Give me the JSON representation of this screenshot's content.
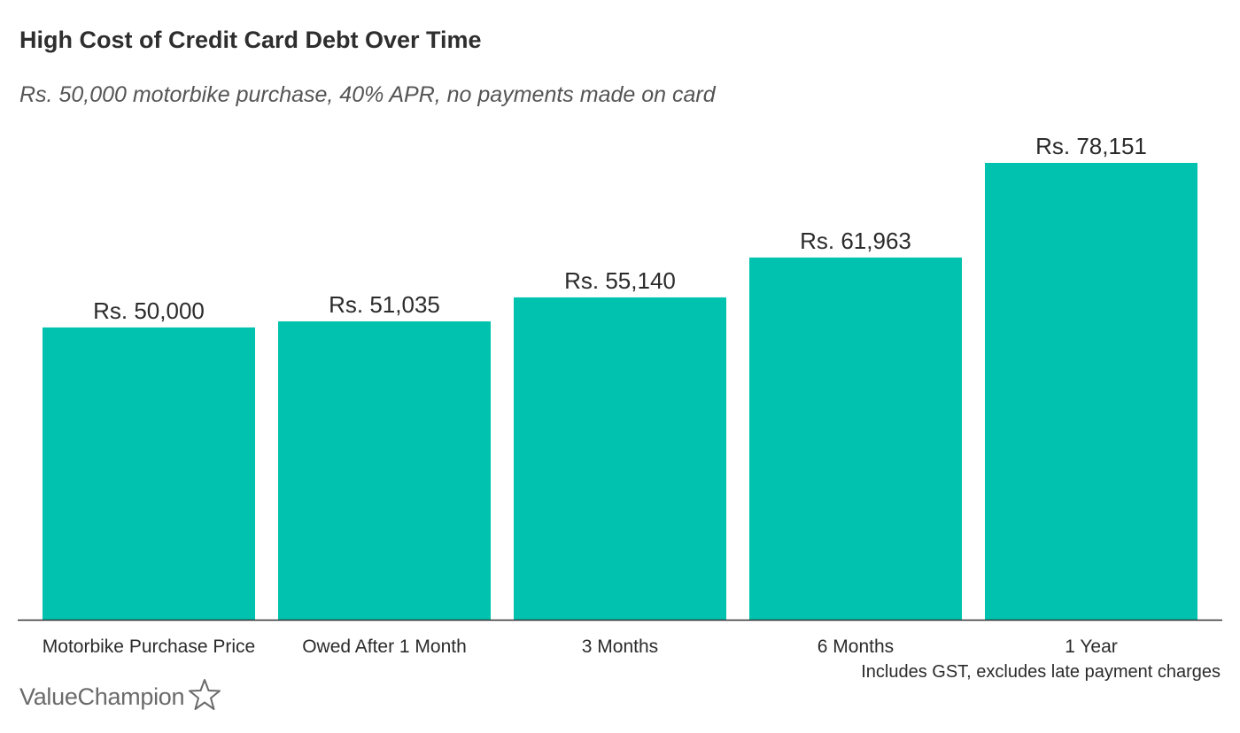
{
  "title": "High Cost of Credit Card Debt Over Time",
  "subtitle": "Rs. 50,000 motorbike purchase, 40% APR, no payments made on card",
  "note": "Includes GST, excludes late payment charges",
  "brand": {
    "name": "ValueChampion",
    "icon": "star-outline-icon"
  },
  "colors": {
    "bar": "#00c2ae",
    "axis": "#333333",
    "text": "#2b2b2b"
  },
  "chart_data": {
    "type": "bar",
    "title": "High Cost of Credit Card Debt Over Time",
    "subtitle": "Rs. 50,000 motorbike purchase, 40% APR, no payments made on card",
    "categories": [
      "Motorbike Purchase Price",
      "Owed After 1 Month",
      "3 Months",
      "6 Months",
      "1 Year"
    ],
    "values": [
      50000,
      51035,
      55140,
      61963,
      78151
    ],
    "data_labels": [
      "Rs. 50,000",
      "Rs. 51,035",
      "Rs. 55,140",
      "Rs. 61,963",
      "Rs. 78,151"
    ],
    "xlabel": "",
    "ylabel": "",
    "ylim": [
      0,
      78151
    ],
    "grid": false,
    "legend": "none"
  }
}
